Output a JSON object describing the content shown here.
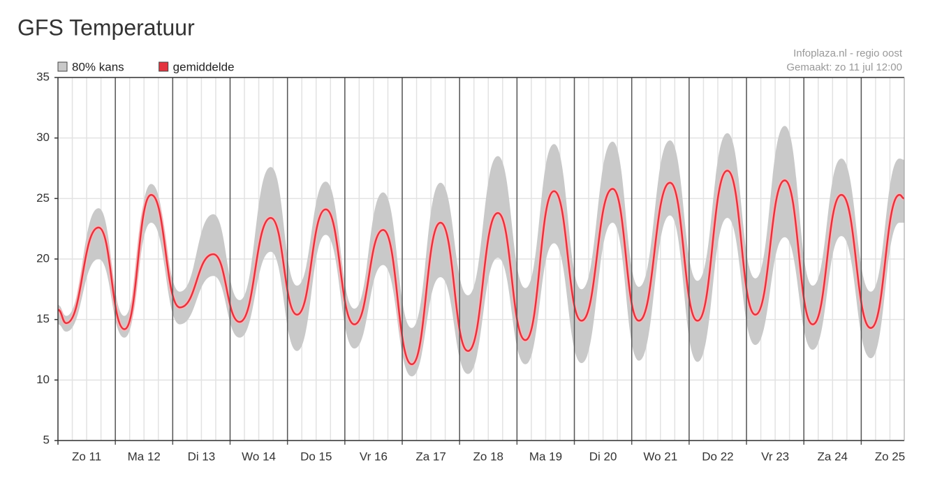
{
  "chart_data": {
    "type": "band-line",
    "title": "GFS Temperatuur",
    "credit": [
      "Infoplaza.nl - regio oost",
      "Gemaakt: zo 11 jul 12:00"
    ],
    "x": [
      0,
      3.5,
      17,
      27.8,
      39,
      51,
      65,
      76,
      89,
      100,
      112,
      124,
      136,
      148,
      160,
      171.5,
      184,
      195.5,
      207.5,
      219,
      232,
      243,
      256,
      267.5,
      280,
      291.7,
      304,
      315.7,
      327.7,
      340,
      352,
      354
    ],
    "series": [
      {
        "name": "80% kans",
        "color": "#c9c9c9",
        "lower": [
          14.6,
          14.0,
          20.0,
          13.5,
          23.0,
          14.6,
          18.6,
          13.5,
          20.6,
          12.4,
          22.0,
          12.6,
          19.5,
          10.3,
          18.5,
          10.5,
          20.1,
          11.3,
          21.3,
          11.4,
          23.0,
          11.6,
          23.6,
          11.5,
          23.4,
          12.9,
          21.8,
          12.5,
          21.9,
          11.8,
          23.0,
          23.0
        ],
        "upper": [
          16.2,
          15.3,
          24.2,
          15.3,
          26.2,
          17.3,
          23.7,
          16.6,
          27.6,
          17.8,
          26.4,
          15.9,
          25.5,
          14.3,
          26.3,
          17.0,
          28.5,
          17.6,
          29.5,
          17.5,
          29.7,
          17.7,
          29.8,
          18.2,
          30.4,
          18.4,
          31.0,
          17.8,
          28.3,
          17.3,
          28.3,
          28.2
        ]
      },
      {
        "name": "gemiddelde",
        "color": "#e3343e",
        "values": [
          15.8,
          14.7,
          22.6,
          14.2,
          25.3,
          16.0,
          20.4,
          14.8,
          23.4,
          15.4,
          24.1,
          14.6,
          22.4,
          11.3,
          23.0,
          12.4,
          23.8,
          13.3,
          25.6,
          14.9,
          25.8,
          14.9,
          26.3,
          14.9,
          27.3,
          15.4,
          26.5,
          14.6,
          25.3,
          14.3,
          25.3,
          25.0
        ]
      }
    ],
    "xlim": [
      0,
      354
    ],
    "xticks": [
      {
        "value": 12,
        "label": "Zo 11"
      },
      {
        "value": 36,
        "label": "Ma 12"
      },
      {
        "value": 60,
        "label": "Di 13"
      },
      {
        "value": 84,
        "label": "Wo 14"
      },
      {
        "value": 108,
        "label": "Do 15"
      },
      {
        "value": 132,
        "label": "Vr 16"
      },
      {
        "value": 156,
        "label": "Za 17"
      },
      {
        "value": 180,
        "label": "Zo 18"
      },
      {
        "value": 204,
        "label": "Ma 19"
      },
      {
        "value": 228,
        "label": "Di 20"
      },
      {
        "value": 252,
        "label": "Wo 21"
      },
      {
        "value": 276,
        "label": "Do 22"
      },
      {
        "value": 300,
        "label": "Vr 23"
      },
      {
        "value": 324,
        "label": "Za 24"
      },
      {
        "value": 348,
        "label": "Zo 25"
      }
    ],
    "day_lines": [
      24,
      48,
      72,
      96,
      120,
      144,
      168,
      192,
      216,
      240,
      264,
      288,
      312,
      336
    ],
    "xgrid_step": 6,
    "ylim": [
      5,
      35
    ],
    "yticks": [
      5,
      10,
      15,
      20,
      25,
      30,
      35
    ],
    "grid": true
  }
}
